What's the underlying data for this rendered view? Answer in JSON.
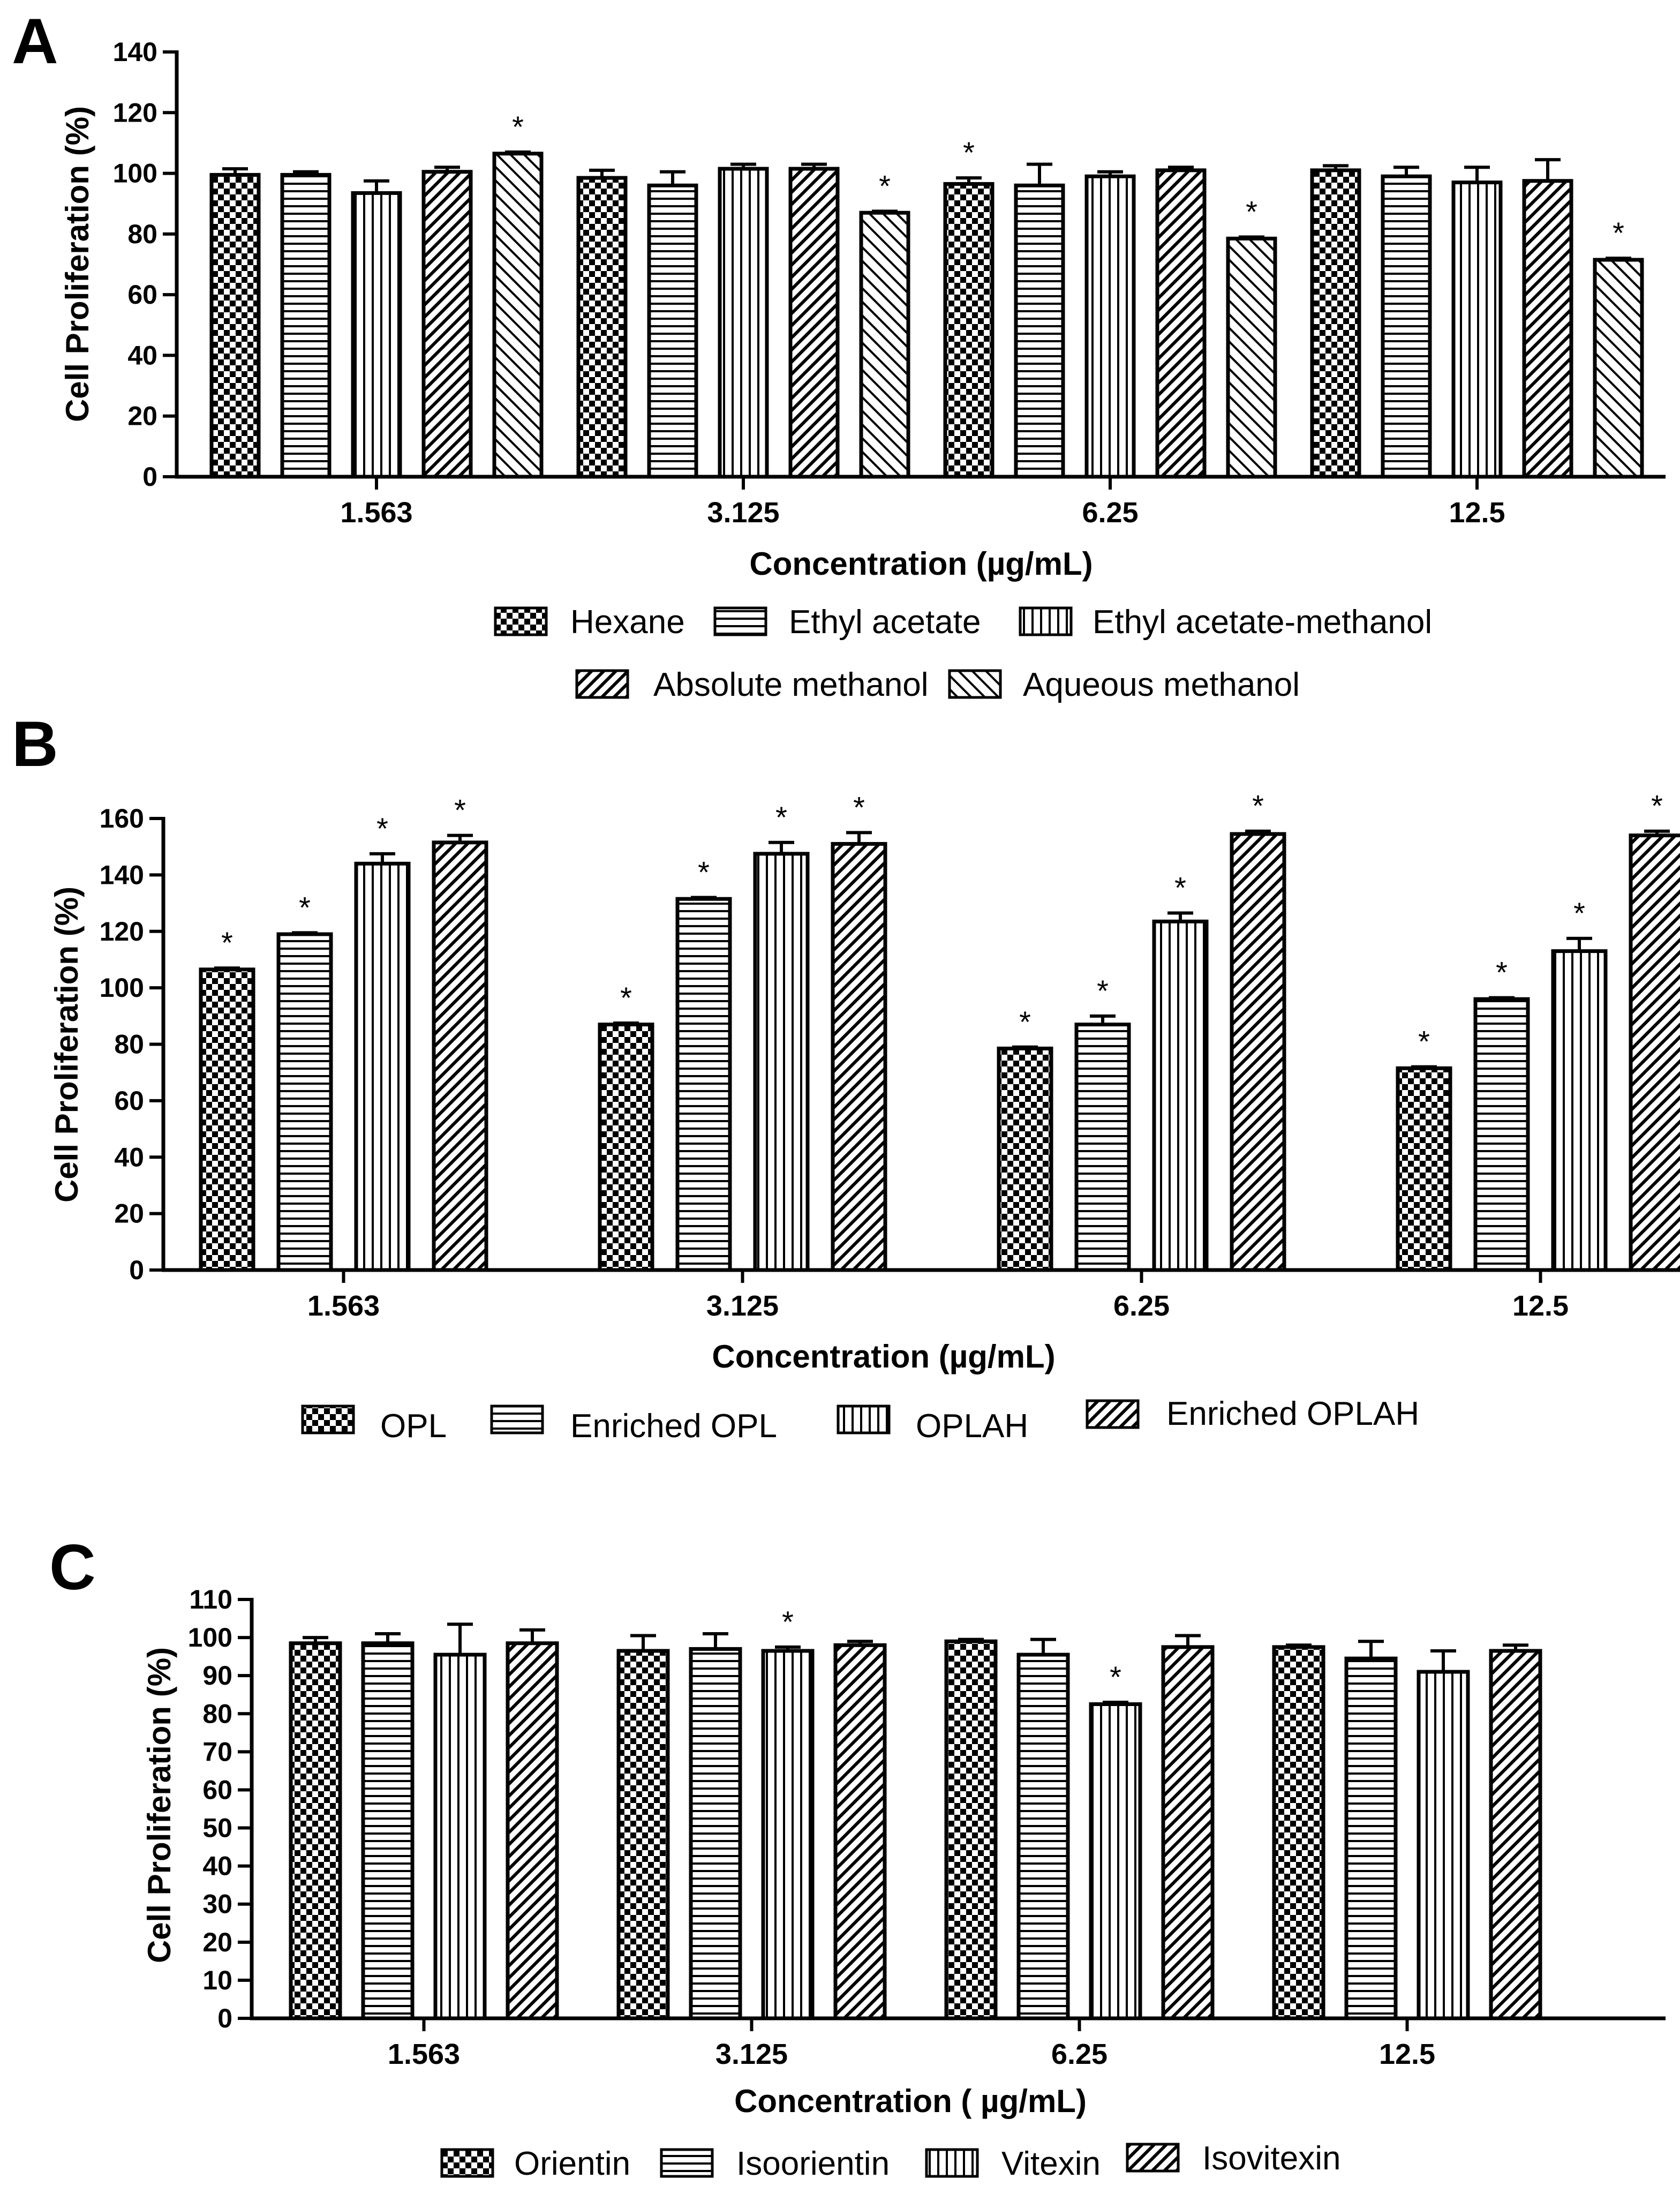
{
  "chart_data": [
    {
      "type": "bar",
      "panel_label": "A",
      "xlabel": "Concentration (µg/mL)",
      "ylabel": "Cell Proliferation (%)",
      "ylim": [
        0,
        140
      ],
      "yticks": [
        0,
        20,
        40,
        60,
        80,
        100,
        120,
        140
      ],
      "categories": [
        "1.563",
        "3.125",
        "6.25",
        "12.5"
      ],
      "legend_position": "bottom",
      "series": [
        {
          "name": "Hexane",
          "pattern": "checker",
          "values": [
            99.5,
            98.5,
            96.5,
            101
          ],
          "errors": [
            2,
            2.5,
            2,
            1.5
          ],
          "significant": [
            false,
            false,
            true,
            false
          ]
        },
        {
          "name": "Ethyl acetate",
          "pattern": "hlines",
          "values": [
            99.5,
            96,
            96,
            99
          ],
          "errors": [
            1,
            4.5,
            7,
            3
          ],
          "significant": [
            false,
            false,
            false,
            false
          ]
        },
        {
          "name": "Ethyl acetate-methanol",
          "pattern": "vlines",
          "values": [
            93.5,
            101.5,
            99,
            97
          ],
          "errors": [
            4,
            1.5,
            1.5,
            5
          ],
          "significant": [
            false,
            false,
            false,
            false
          ]
        },
        {
          "name": "Absolute methanol",
          "pattern": "diag-dense",
          "values": [
            100.5,
            101.5,
            101,
            97.5
          ],
          "errors": [
            1.5,
            1.5,
            1,
            7
          ],
          "significant": [
            false,
            false,
            false,
            false
          ]
        },
        {
          "name": "Aqueous methanol",
          "pattern": "diag-sparse",
          "values": [
            106.5,
            87,
            78.5,
            71.5
          ],
          "errors": [
            0.5,
            0.5,
            0.5,
            0.5
          ],
          "significant": [
            true,
            true,
            true,
            true
          ]
        }
      ]
    },
    {
      "type": "bar",
      "panel_label": "B",
      "xlabel": "Concentration (µg/mL)",
      "ylabel": "Cell Proliferation (%)",
      "ylim": [
        0,
        160
      ],
      "yticks": [
        0,
        20,
        40,
        60,
        80,
        100,
        120,
        140,
        160
      ],
      "categories": [
        "1.563",
        "3.125",
        "6.25",
        "12.5"
      ],
      "legend_position": "bottom",
      "series": [
        {
          "name": "OPL",
          "pattern": "checker",
          "values": [
            106.5,
            87,
            78.5,
            71.5
          ],
          "errors": [
            0.5,
            0.5,
            0.5,
            0.5
          ],
          "significant": [
            true,
            true,
            true,
            true
          ]
        },
        {
          "name": "Enriched OPL",
          "pattern": "hlines",
          "values": [
            119,
            131.5,
            87,
            96
          ],
          "errors": [
            0.5,
            0.5,
            3,
            0.5
          ],
          "significant": [
            true,
            true,
            true,
            true
          ]
        },
        {
          "name": "OPLAH",
          "pattern": "vlines",
          "values": [
            144,
            147.5,
            123.5,
            113
          ],
          "errors": [
            3.5,
            4,
            3,
            4.5
          ],
          "significant": [
            true,
            true,
            true,
            true
          ]
        },
        {
          "name": "Enriched OPLAH",
          "pattern": "diag-dense",
          "values": [
            151.5,
            151,
            154.5,
            154
          ],
          "errors": [
            2.5,
            4,
            1,
            1.5
          ],
          "significant": [
            true,
            true,
            true,
            true
          ]
        }
      ]
    },
    {
      "type": "bar",
      "panel_label": "C",
      "xlabel": "Concentration ( µg/mL)",
      "ylabel": "Cell Proliferation (%)",
      "ylim": [
        0,
        110
      ],
      "yticks": [
        0,
        10,
        20,
        30,
        40,
        50,
        60,
        70,
        80,
        90,
        100,
        110
      ],
      "categories": [
        "1.563",
        "3.125",
        "6.25",
        "12.5"
      ],
      "legend_position": "bottom",
      "series": [
        {
          "name": "Orientin",
          "pattern": "checker",
          "values": [
            98.5,
            96.5,
            99,
            97.5
          ],
          "errors": [
            1.5,
            4,
            0.5,
            0.5
          ],
          "significant": [
            false,
            false,
            false,
            false
          ]
        },
        {
          "name": "Isoorientin",
          "pattern": "hlines",
          "values": [
            98.5,
            97,
            95.5,
            94.5
          ],
          "errors": [
            2.5,
            4,
            4,
            4.5
          ],
          "significant": [
            false,
            false,
            false,
            false
          ]
        },
        {
          "name": "Vitexin",
          "pattern": "vlines",
          "values": [
            95.5,
            96.5,
            82.5,
            91
          ],
          "errors": [
            8,
            1,
            0.5,
            5.5
          ],
          "significant": [
            false,
            true,
            true,
            false
          ]
        },
        {
          "name": "Isovitexin",
          "pattern": "diag-dense",
          "values": [
            98.5,
            98,
            97.5,
            96.5
          ],
          "errors": [
            3.5,
            1,
            3,
            1.5
          ],
          "significant": [
            false,
            false,
            false,
            false
          ]
        }
      ]
    }
  ]
}
